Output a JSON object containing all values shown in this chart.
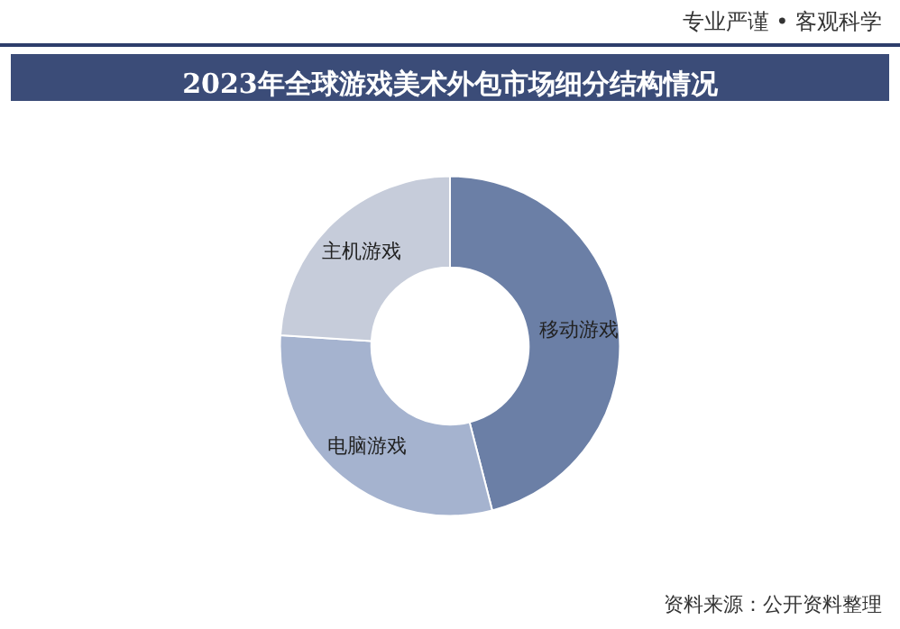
{
  "chart_data": {
    "type": "donut",
    "title": "2023年全球游戏美术外包市场细分结构情况",
    "categories": [
      "移动游戏",
      "电脑游戏",
      "主机游戏"
    ],
    "values": [
      46,
      30,
      24
    ],
    "colors": [
      "#6b7fa6",
      "#a5b3cf",
      "#c6ccda"
    ],
    "annotations": [
      "专业严谨 • 客观科学",
      "资料来源：公开资料整理"
    ]
  }
}
